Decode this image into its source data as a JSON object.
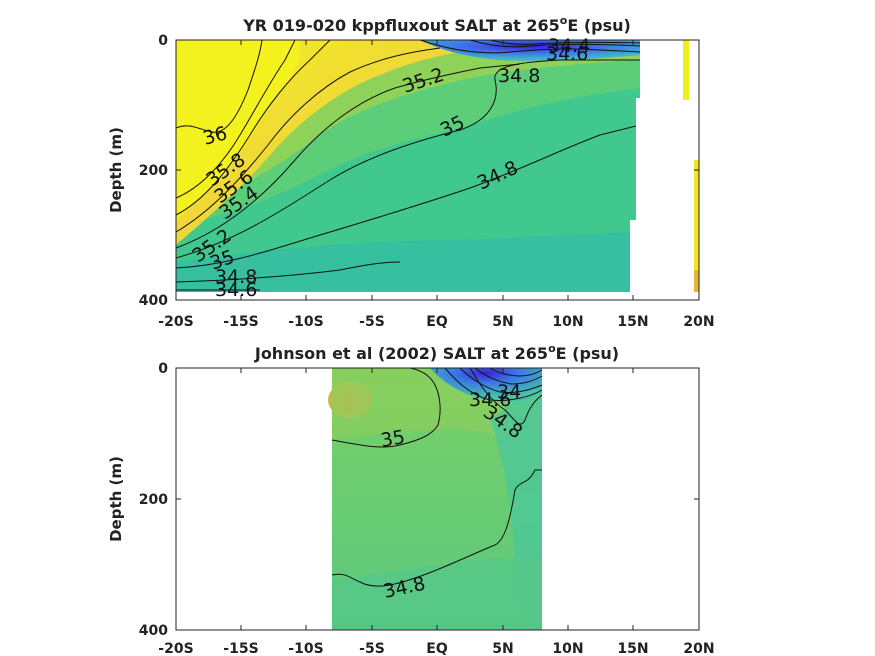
{
  "chart_data": [
    {
      "type": "contour",
      "title": "YR 019-020 kppfluxout SALT at 265",
      "title_sup": "o",
      "title_tail": "E (psu)",
      "ylabel": "Depth (m)",
      "xlabel": "",
      "x_ticks": [
        "-20S",
        "-15S",
        "-10S",
        "-5S",
        "EQ",
        "5N",
        "10N",
        "15N",
        "20N"
      ],
      "x_tick_values": [
        -20,
        -15,
        -10,
        -5,
        0,
        5,
        10,
        15,
        20
      ],
      "y_ticks": [
        "0",
        "200",
        "400"
      ],
      "y_tick_values": [
        0,
        200,
        400
      ],
      "xlim": [
        -20,
        20
      ],
      "ylim": [
        400,
        0
      ],
      "y_reversed": true,
      "contour_levels": [
        34.0,
        34.2,
        34.4,
        34.6,
        34.8,
        35.0,
        35.2,
        35.4,
        35.6,
        35.8,
        36.0
      ],
      "contour_labels": [
        "36",
        "35.8",
        "35.6",
        "35.4",
        "35.2",
        "35",
        "34.8",
        "34.6",
        "35.2",
        "35",
        "34.8",
        "34.6",
        "34.4"
      ],
      "colormap": [
        "#3a2fd0",
        "#2f8fe0",
        "#2bb8c0",
        "#3ec98f",
        "#5fd07a",
        "#a8d44a",
        "#e8b63a",
        "#f0f020"
      ],
      "accent_high": "#f5f520",
      "accent_low": "#3b2bd6"
    },
    {
      "type": "contour",
      "title": "Johnson et al (2002) SALT at 265",
      "title_sup": "o",
      "title_tail": "E (psu)",
      "ylabel": "Depth (m)",
      "xlabel": "",
      "x_ticks": [
        "-20S",
        "-15S",
        "-10S",
        "-5S",
        "EQ",
        "5N",
        "10N",
        "15N",
        "20N"
      ],
      "x_tick_values": [
        -20,
        -15,
        -10,
        -5,
        0,
        5,
        10,
        15,
        20
      ],
      "y_ticks": [
        "0",
        "200",
        "400"
      ],
      "y_tick_values": [
        0,
        200,
        400
      ],
      "xlim": [
        -20,
        20
      ],
      "ylim": [
        400,
        0
      ],
      "y_reversed": true,
      "data_xrange": [
        -8,
        8
      ],
      "contour_labels": [
        "35",
        "34.6",
        "34.8",
        "34",
        "34.8"
      ],
      "colormap": [
        "#3a2fd0",
        "#2f8fe0",
        "#3ec98f",
        "#6cd070",
        "#a8d44a",
        "#d9b040"
      ]
    }
  ]
}
